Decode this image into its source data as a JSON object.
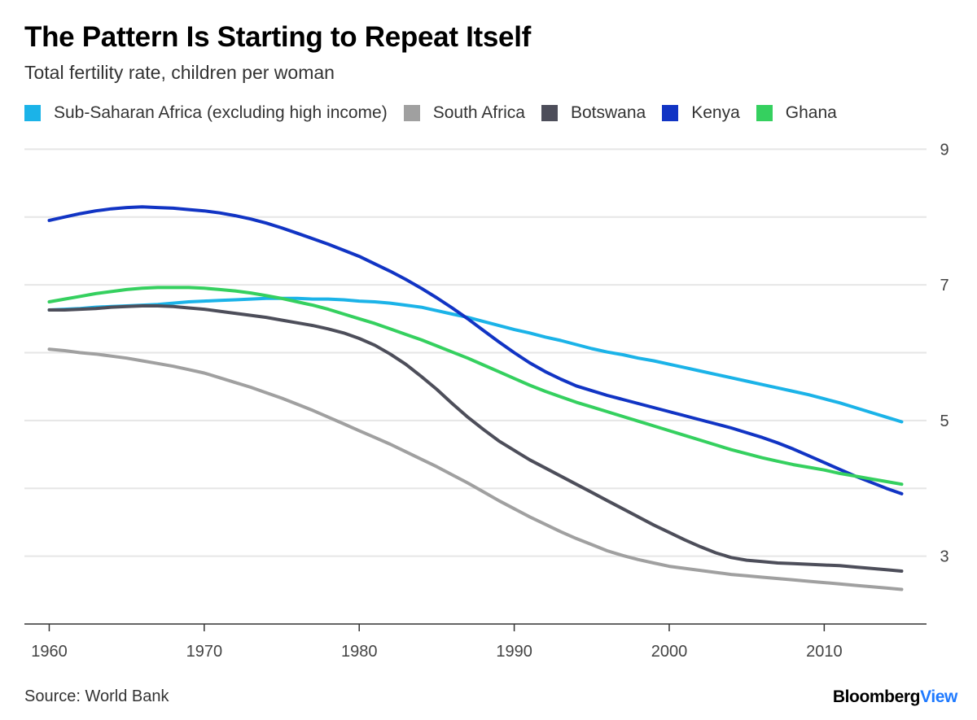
{
  "header": {
    "title": "The Pattern Is Starting to Repeat Itself",
    "subtitle": "Total fertility rate, children per woman"
  },
  "footer": {
    "source": "Source: World Bank",
    "brand_main": "Bloomberg",
    "brand_accent": "View"
  },
  "chart_data": {
    "type": "line",
    "title": "The Pattern Is Starting to Repeat Itself",
    "subtitle": "Total fertility rate, children per woman",
    "xlabel": "",
    "ylabel": "",
    "xlim": [
      1958.4,
      2016.6
    ],
    "ylim": [
      2.0,
      9.4
    ],
    "x_ticks": [
      1960,
      1970,
      1980,
      1990,
      2000,
      2010
    ],
    "y_ticks": [
      3,
      5,
      7,
      9
    ],
    "y_gridlines": [
      3,
      4,
      5,
      6,
      7,
      8,
      9
    ],
    "y_tick_labels": [
      "3",
      "5",
      "7",
      "9"
    ],
    "y_axis_side": "right",
    "legend_position": "top",
    "grid": true,
    "x": [
      1960,
      1961,
      1962,
      1963,
      1964,
      1965,
      1966,
      1967,
      1968,
      1969,
      1970,
      1971,
      1972,
      1973,
      1974,
      1975,
      1976,
      1977,
      1978,
      1979,
      1980,
      1981,
      1982,
      1983,
      1984,
      1985,
      1986,
      1987,
      1988,
      1989,
      1990,
      1991,
      1992,
      1993,
      1994,
      1995,
      1996,
      1997,
      1998,
      1999,
      2000,
      2001,
      2002,
      2003,
      2004,
      2005,
      2006,
      2007,
      2008,
      2009,
      2010,
      2011,
      2012,
      2013,
      2014,
      2015
    ],
    "series": [
      {
        "name": "Sub-Saharan Africa (excluding high income)",
        "color": "#1bb3e8",
        "values": [
          6.63,
          6.64,
          6.65,
          6.67,
          6.68,
          6.69,
          6.7,
          6.71,
          6.73,
          6.75,
          6.76,
          6.77,
          6.78,
          6.79,
          6.8,
          6.8,
          6.8,
          6.79,
          6.79,
          6.78,
          6.76,
          6.75,
          6.73,
          6.7,
          6.67,
          6.62,
          6.57,
          6.52,
          6.46,
          6.4,
          6.34,
          6.29,
          6.23,
          6.18,
          6.12,
          6.06,
          6.01,
          5.97,
          5.92,
          5.88,
          5.83,
          5.78,
          5.73,
          5.68,
          5.63,
          5.58,
          5.53,
          5.48,
          5.43,
          5.38,
          5.32,
          5.26,
          5.19,
          5.12,
          5.05,
          4.98
        ]
      },
      {
        "name": "South Africa",
        "color": "#a0a0a0",
        "values": [
          6.05,
          6.03,
          6.0,
          5.98,
          5.95,
          5.92,
          5.88,
          5.84,
          5.8,
          5.75,
          5.7,
          5.63,
          5.56,
          5.49,
          5.41,
          5.33,
          5.24,
          5.15,
          5.05,
          4.95,
          4.85,
          4.75,
          4.65,
          4.54,
          4.43,
          4.32,
          4.2,
          4.08,
          3.95,
          3.82,
          3.7,
          3.58,
          3.47,
          3.36,
          3.26,
          3.17,
          3.08,
          3.01,
          2.95,
          2.9,
          2.85,
          2.82,
          2.79,
          2.76,
          2.73,
          2.71,
          2.69,
          2.67,
          2.65,
          2.63,
          2.61,
          2.59,
          2.57,
          2.55,
          2.53,
          2.51
        ]
      },
      {
        "name": "Botswana",
        "color": "#4d4e5a",
        "values": [
          6.63,
          6.63,
          6.64,
          6.65,
          6.67,
          6.68,
          6.69,
          6.69,
          6.68,
          6.66,
          6.64,
          6.61,
          6.58,
          6.55,
          6.52,
          6.48,
          6.44,
          6.4,
          6.35,
          6.29,
          6.21,
          6.11,
          5.98,
          5.83,
          5.65,
          5.46,
          5.25,
          5.05,
          4.87,
          4.7,
          4.56,
          4.42,
          4.3,
          4.18,
          4.06,
          3.94,
          3.82,
          3.7,
          3.58,
          3.46,
          3.35,
          3.24,
          3.14,
          3.05,
          2.98,
          2.94,
          2.92,
          2.9,
          2.89,
          2.88,
          2.87,
          2.86,
          2.84,
          2.82,
          2.8,
          2.78
        ]
      },
      {
        "name": "Kenya",
        "color": "#1134c4",
        "values": [
          7.95,
          8.0,
          8.05,
          8.09,
          8.12,
          8.14,
          8.15,
          8.14,
          8.13,
          8.11,
          8.09,
          8.06,
          8.02,
          7.97,
          7.91,
          7.84,
          7.76,
          7.68,
          7.6,
          7.51,
          7.42,
          7.31,
          7.2,
          7.08,
          6.95,
          6.81,
          6.66,
          6.5,
          6.33,
          6.16,
          6.0,
          5.85,
          5.72,
          5.61,
          5.51,
          5.44,
          5.37,
          5.31,
          5.25,
          5.19,
          5.13,
          5.07,
          5.01,
          4.95,
          4.89,
          4.82,
          4.75,
          4.67,
          4.58,
          4.48,
          4.38,
          4.28,
          4.18,
          4.09,
          4.0,
          3.92
        ]
      },
      {
        "name": "Ghana",
        "color": "#35d05f",
        "values": [
          6.75,
          6.79,
          6.83,
          6.87,
          6.9,
          6.93,
          6.95,
          6.96,
          6.96,
          6.96,
          6.95,
          6.93,
          6.91,
          6.88,
          6.84,
          6.8,
          6.75,
          6.7,
          6.64,
          6.57,
          6.5,
          6.43,
          6.35,
          6.27,
          6.19,
          6.1,
          6.01,
          5.92,
          5.82,
          5.72,
          5.62,
          5.52,
          5.43,
          5.35,
          5.27,
          5.2,
          5.13,
          5.06,
          4.99,
          4.92,
          4.85,
          4.78,
          4.71,
          4.64,
          4.57,
          4.51,
          4.45,
          4.4,
          4.35,
          4.31,
          4.27,
          4.22,
          4.18,
          4.14,
          4.1,
          4.06
        ]
      }
    ]
  }
}
